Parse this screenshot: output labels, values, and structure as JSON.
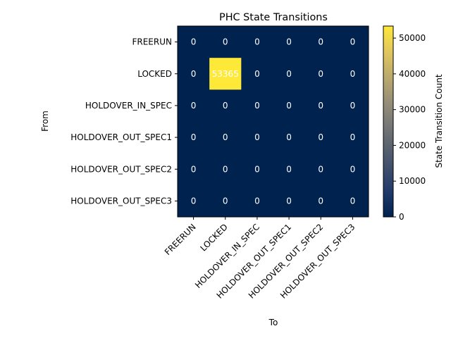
{
  "chart_data": {
    "type": "heatmap",
    "title": "PHC State Transitions",
    "xlabel": "To",
    "ylabel": "From",
    "x_categories": [
      "FREERUN",
      "LOCKED",
      "HOLDOVER_IN_SPEC",
      "HOLDOVER_OUT_SPEC1",
      "HOLDOVER_OUT_SPEC2",
      "HOLDOVER_OUT_SPEC3"
    ],
    "y_categories": [
      "FREERUN",
      "LOCKED",
      "HOLDOVER_IN_SPEC",
      "HOLDOVER_OUT_SPEC1",
      "HOLDOVER_OUT_SPEC2",
      "HOLDOVER_OUT_SPEC3"
    ],
    "values": [
      [
        0,
        0,
        0,
        0,
        0,
        0
      ],
      [
        0,
        53365,
        0,
        0,
        0,
        0
      ],
      [
        0,
        0,
        0,
        0,
        0,
        0
      ],
      [
        0,
        0,
        0,
        0,
        0,
        0
      ],
      [
        0,
        0,
        0,
        0,
        0,
        0
      ],
      [
        0,
        0,
        0,
        0,
        0,
        0
      ]
    ],
    "colormap": "cividis",
    "colorbar": {
      "label": "State Transition Count",
      "range": [
        0,
        53365
      ],
      "ticks": [
        0,
        10000,
        20000,
        30000,
        40000,
        50000
      ]
    },
    "x_tick_rotation_deg": 45,
    "grid": false,
    "legend": "none"
  }
}
